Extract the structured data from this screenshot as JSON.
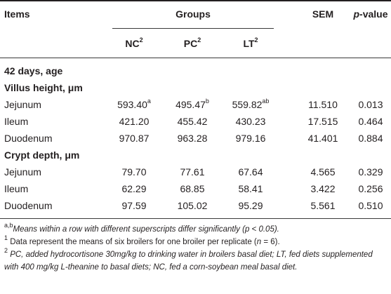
{
  "header": {
    "items": "Items",
    "groups": "Groups",
    "sem": "SEM",
    "pvalue_p": "p",
    "pvalue_rest": "-value",
    "nc": "NC",
    "pc": "PC",
    "lt": "LT",
    "sup": "2"
  },
  "age_label": "42 days, age",
  "sections": [
    {
      "title": "Villus height, μm",
      "rows": [
        {
          "item": "Jejunum",
          "nc": "593.40",
          "nc_sup": "a",
          "pc": "495.47",
          "pc_sup": "b",
          "lt": "559.82",
          "lt_sup": "ab",
          "sem": "11.510",
          "p": "0.013"
        },
        {
          "item": "Ileum",
          "nc": "421.20",
          "pc": "455.42",
          "lt": "430.23",
          "sem": "17.515",
          "p": "0.464"
        },
        {
          "item": "Duodenum",
          "nc": "970.87",
          "pc": "963.28",
          "lt": "979.16",
          "sem": "41.401",
          "p": "0.884"
        }
      ]
    },
    {
      "title": "Crypt depth, μm",
      "rows": [
        {
          "item": "Jejunum",
          "nc": "79.70",
          "pc": "77.61",
          "lt": "67.64",
          "sem": "4.565",
          "p": "0.329"
        },
        {
          "item": "Ileum",
          "nc": "62.29",
          "pc": "68.85",
          "lt": "58.41",
          "sem": "3.422",
          "p": "0.256"
        },
        {
          "item": "Duodenum",
          "nc": "97.59",
          "pc": "105.02",
          "lt": "95.29",
          "sem": "5.561",
          "p": "0.510"
        }
      ]
    }
  ],
  "footnotes": {
    "f1_sup": "a,b",
    "f1_a": "Means within a row with different superscripts differ significantly (",
    "f1_p": "p",
    "f1_b": " < 0.05).",
    "f2_sup": "1",
    "f2_a": " Data represent the means of six broilers for one broiler per replicate (",
    "f2_n": "n",
    "f2_b": " = 6).",
    "f3_sup": "2",
    "f3_text": " PC, added hydrocortisone 30mg/kg to drinking water in broilers basal diet; LT, fed diets supplemented with 400 mg/kg L-theanine to basal diets; NC, fed a corn-soybean meal basal diet."
  }
}
